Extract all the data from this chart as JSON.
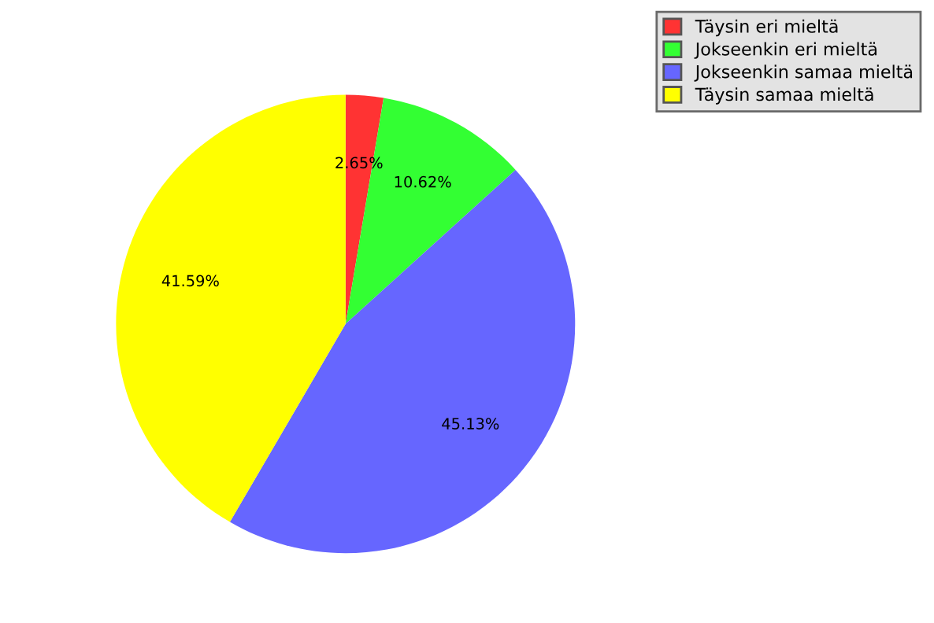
{
  "chart_data": {
    "type": "pie",
    "categories": [
      "Täysin eri mieltä",
      "Jokseenkin eri mieltä",
      "Jokseenkin samaa mieltä",
      "Täysin samaa mieltä"
    ],
    "values": [
      2.65,
      10.62,
      45.13,
      41.59
    ],
    "colors": [
      "#ff3333",
      "#33ff33",
      "#6666ff",
      "#ffff00"
    ],
    "value_labels": [
      "2.65%",
      "10.62%",
      "45.13%",
      "41.59%"
    ],
    "legend": "top right"
  }
}
